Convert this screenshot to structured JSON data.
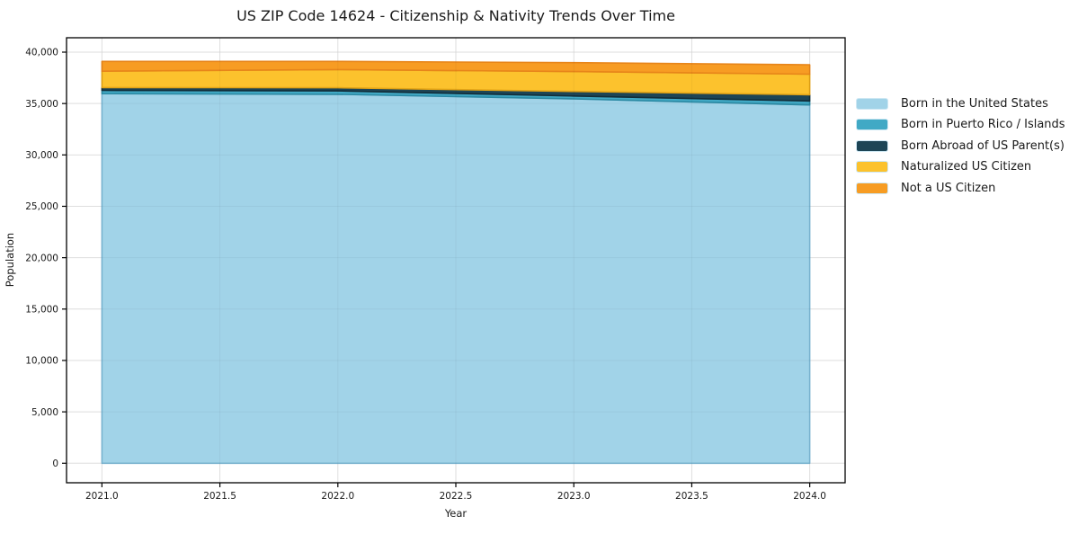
{
  "chart_data": {
    "type": "area",
    "stacked": true,
    "title": "US ZIP Code 14624 - Citizenship & Nativity Trends Over Time",
    "xlabel": "Year",
    "ylabel": "Population",
    "x": [
      2021,
      2022,
      2023,
      2024
    ],
    "series": [
      {
        "name": "Born in the United States",
        "color": "#a1d3e8",
        "edge": "#7cb8d6",
        "values": [
          35960,
          35900,
          35450,
          34870
        ]
      },
      {
        "name": "Born in Puerto Rico / Islands",
        "color": "#41a9c5",
        "edge": "#2c8aa4",
        "values": [
          320,
          330,
          280,
          380
        ]
      },
      {
        "name": "Born Abroad of US Parent(s)",
        "color": "#1d4556",
        "edge": "#122d39",
        "values": [
          270,
          310,
          450,
          600
        ]
      },
      {
        "name": "Naturalized US Citizen",
        "color": "#fcc22d",
        "edge": "#e3a416",
        "values": [
          1600,
          1760,
          1930,
          2010
        ]
      },
      {
        "name": "Not a US Citizen",
        "color": "#f79c23",
        "edge": "#e7851a",
        "values": [
          950,
          800,
          870,
          920
        ]
      }
    ],
    "xlim": [
      2020.85,
      2024.15
    ],
    "ylim": [
      -1900,
      41400
    ],
    "x_ticks": [
      {
        "v": 2021.0,
        "label": "2021.0"
      },
      {
        "v": 2021.5,
        "label": "2021.5"
      },
      {
        "v": 2022.0,
        "label": "2022.0"
      },
      {
        "v": 2022.5,
        "label": "2022.5"
      },
      {
        "v": 2023.0,
        "label": "2023.0"
      },
      {
        "v": 2023.5,
        "label": "2023.5"
      },
      {
        "v": 2024.0,
        "label": "2024.0"
      }
    ],
    "y_ticks": [
      {
        "v": 0,
        "label": "0"
      },
      {
        "v": 5000,
        "label": "5,000"
      },
      {
        "v": 10000,
        "label": "10,000"
      },
      {
        "v": 15000,
        "label": "15,000"
      },
      {
        "v": 20000,
        "label": "20,000"
      },
      {
        "v": 25000,
        "label": "25,000"
      },
      {
        "v": 30000,
        "label": "30,000"
      },
      {
        "v": 35000,
        "label": "35,000"
      },
      {
        "v": 40000,
        "label": "40,000"
      }
    ],
    "grid": true,
    "legend_position": "right",
    "colors": {
      "grid": "#e8e8e8",
      "spine": "#000000",
      "background": "#ffffff"
    }
  }
}
